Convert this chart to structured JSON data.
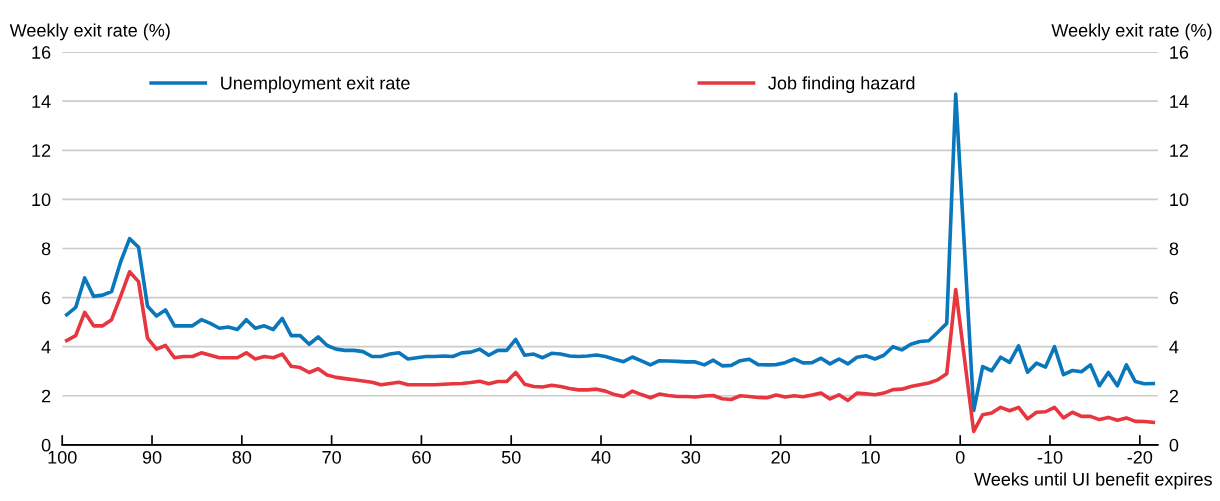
{
  "chart_data": {
    "type": "line",
    "ylabel": "Weekly exit rate (%)",
    "y2label": "Weekly exit rate (%)",
    "xlabel": "Weeks until UI benefit expires",
    "x": [
      99.5,
      98.5,
      97.5,
      96.5,
      95.5,
      94.5,
      93.5,
      92.5,
      91.5,
      90.5,
      89.5,
      88.5,
      87.5,
      86.5,
      85.5,
      84.5,
      83.5,
      82.5,
      81.5,
      80.5,
      79.5,
      78.5,
      77.5,
      76.5,
      75.5,
      74.5,
      73.5,
      72.5,
      71.5,
      70.5,
      69.5,
      68.5,
      67.5,
      66.5,
      65.5,
      64.5,
      63.5,
      62.5,
      61.5,
      60.5,
      59.5,
      58.5,
      57.5,
      56.5,
      55.5,
      54.5,
      53.5,
      52.5,
      51.5,
      50.5,
      49.5,
      48.5,
      47.5,
      46.5,
      45.5,
      44.5,
      43.5,
      42.5,
      41.5,
      40.5,
      39.5,
      38.5,
      37.5,
      36.5,
      35.5,
      34.5,
      33.5,
      32.5,
      31.5,
      30.5,
      29.5,
      28.5,
      27.5,
      26.5,
      25.5,
      24.5,
      23.5,
      22.5,
      21.5,
      20.5,
      19.5,
      18.5,
      17.5,
      16.5,
      15.5,
      14.5,
      13.5,
      12.5,
      11.5,
      10.5,
      9.5,
      8.5,
      7.5,
      6.5,
      5.5,
      4.5,
      3.5,
      2.5,
      1.5,
      0.5,
      -1.5,
      -2.5,
      -3.5,
      -4.5,
      -5.5,
      -6.5,
      -7.5,
      -8.5,
      -9.5,
      -10.5,
      -11.5,
      -12.5,
      -13.5,
      -14.5,
      -15.5,
      -16.5,
      -17.5,
      -18.5,
      -19.5,
      -20.5,
      -21.5
    ],
    "series": [
      {
        "name": "Unemployment exit rate",
        "color": "#0a77bd",
        "values": [
          5.3,
          5.6,
          6.8,
          6.05,
          6.1,
          6.25,
          7.45,
          8.4,
          8.05,
          5.65,
          5.25,
          5.5,
          4.85,
          4.85,
          4.85,
          5.1,
          4.95,
          4.75,
          4.8,
          4.7,
          5.1,
          4.75,
          4.85,
          4.7,
          5.15,
          4.45,
          4.45,
          4.1,
          4.4,
          4.05,
          3.9,
          3.85,
          3.85,
          3.8,
          3.6,
          3.6,
          3.7,
          3.75,
          3.5,
          3.55,
          3.6,
          3.6,
          3.62,
          3.6,
          3.75,
          3.78,
          3.9,
          3.65,
          3.85,
          3.85,
          4.3,
          3.65,
          3.7,
          3.55,
          3.73,
          3.7,
          3.62,
          3.6,
          3.62,
          3.66,
          3.6,
          3.49,
          3.39,
          3.58,
          3.42,
          3.26,
          3.43,
          3.42,
          3.4,
          3.38,
          3.38,
          3.26,
          3.45,
          3.22,
          3.24,
          3.43,
          3.49,
          3.27,
          3.26,
          3.27,
          3.35,
          3.5,
          3.34,
          3.35,
          3.53,
          3.3,
          3.5,
          3.3,
          3.57,
          3.63,
          3.5,
          3.65,
          4.0,
          3.87,
          4.1,
          4.21,
          4.24,
          4.59,
          4.95,
          14.29,
          1.4,
          3.19,
          3.02,
          3.57,
          3.36,
          4.03,
          2.96,
          3.33,
          3.17,
          4.0,
          2.86,
          3.03,
          2.98,
          3.26,
          2.41,
          2.95,
          2.41,
          3.26,
          2.58,
          2.49,
          2.5
        ]
      },
      {
        "name": "Job finding hazard",
        "color": "#e8363f",
        "values": [
          4.25,
          4.45,
          5.4,
          4.85,
          4.85,
          5.1,
          6.05,
          7.05,
          6.65,
          4.35,
          3.9,
          4.05,
          3.55,
          3.6,
          3.6,
          3.75,
          3.65,
          3.55,
          3.55,
          3.55,
          3.75,
          3.5,
          3.6,
          3.55,
          3.7,
          3.2,
          3.15,
          2.95,
          3.1,
          2.85,
          2.75,
          2.7,
          2.65,
          2.6,
          2.55,
          2.45,
          2.5,
          2.55,
          2.45,
          2.45,
          2.45,
          2.45,
          2.47,
          2.49,
          2.5,
          2.54,
          2.59,
          2.49,
          2.58,
          2.58,
          2.95,
          2.47,
          2.38,
          2.36,
          2.43,
          2.38,
          2.3,
          2.24,
          2.24,
          2.27,
          2.19,
          2.05,
          1.97,
          2.19,
          2.05,
          1.92,
          2.07,
          2.01,
          1.97,
          1.97,
          1.95,
          1.99,
          2.01,
          1.88,
          1.85,
          2.0,
          1.97,
          1.93,
          1.92,
          2.03,
          1.95,
          2.0,
          1.96,
          2.03,
          2.11,
          1.87,
          2.04,
          1.81,
          2.11,
          2.08,
          2.04,
          2.11,
          2.25,
          2.27,
          2.38,
          2.45,
          2.52,
          2.65,
          2.9,
          6.33,
          0.55,
          1.23,
          1.3,
          1.53,
          1.39,
          1.53,
          1.06,
          1.33,
          1.35,
          1.53,
          1.1,
          1.33,
          1.16,
          1.16,
          1.03,
          1.12,
          1.0,
          1.1,
          0.96,
          0.95,
          0.92
        ]
      }
    ],
    "xlim": [
      100,
      -22
    ],
    "xticks": [
      100,
      90,
      80,
      70,
      60,
      50,
      40,
      30,
      20,
      10,
      0,
      -10,
      -20
    ],
    "ylim": [
      0,
      16
    ],
    "yticks": [
      0,
      2,
      4,
      6,
      8,
      10,
      12,
      14,
      16
    ],
    "y2lim": [
      0,
      16
    ],
    "y2ticks": [
      0,
      2,
      4,
      6,
      8,
      10,
      12,
      14,
      16
    ],
    "grid": "y",
    "legend": "top",
    "marker": "none",
    "line_style": "solid"
  }
}
